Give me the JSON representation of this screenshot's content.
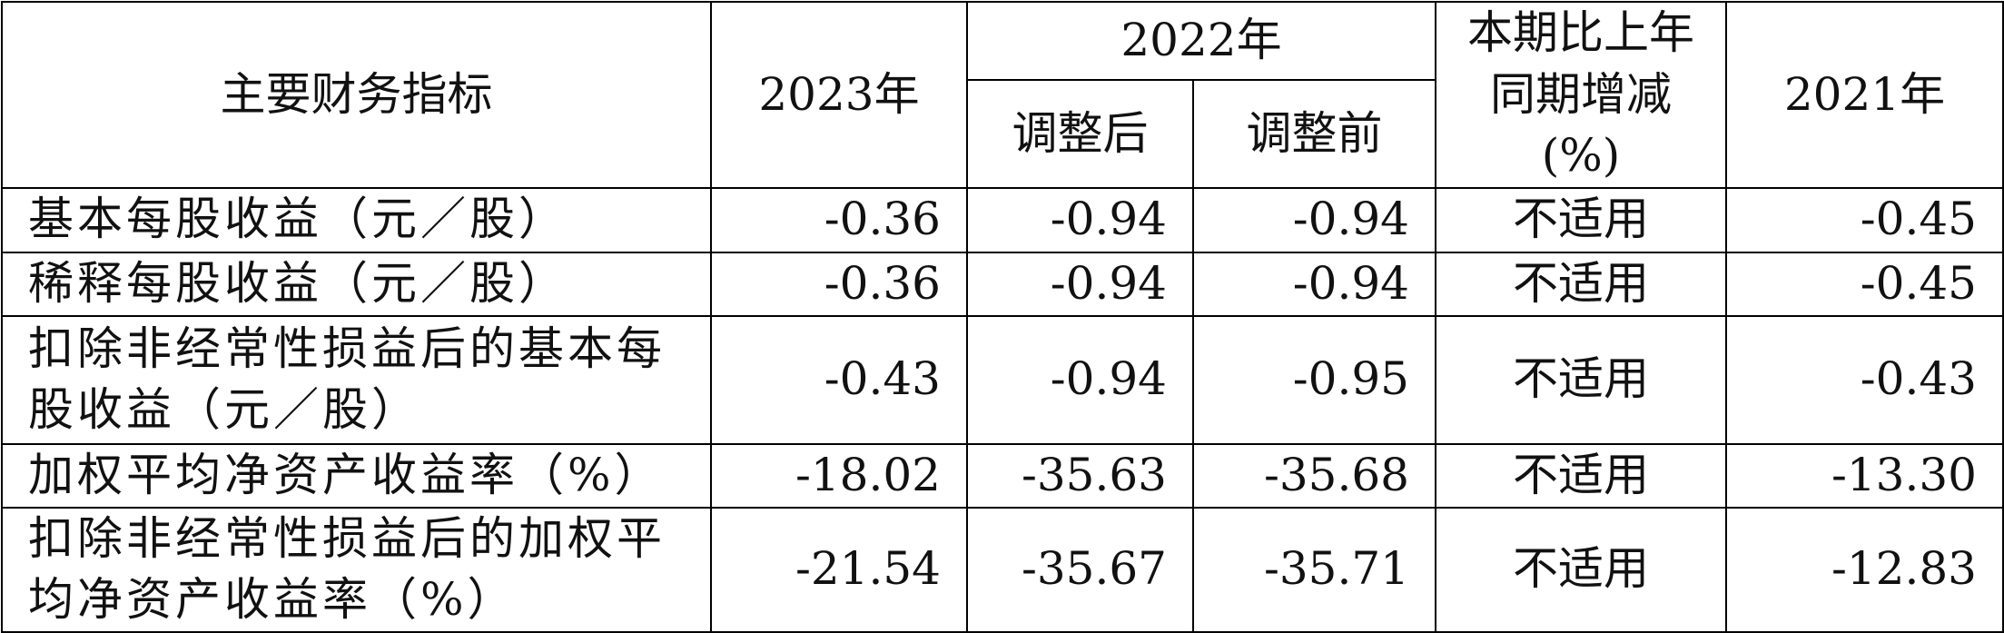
{
  "table": {
    "header": {
      "indicator": "主要财务指标",
      "y2023": "2023年",
      "y2022": "2022年",
      "adjusted": "调整后",
      "before_adjustment": "调整前",
      "change": [
        "本期比上年",
        "同期增减",
        "(%)"
      ],
      "y2021": "2021年"
    },
    "rows": [
      [
        "基本每股收益（元／股）",
        "-0.36",
        "-0.94",
        "-0.94",
        "不适用",
        "-0.45"
      ],
      [
        "稀释每股收益（元／股）",
        "-0.36",
        "-0.94",
        "-0.94",
        "不适用",
        "-0.45"
      ],
      [
        "扣除非经常性损益后的基本每股收益（元／股）",
        "-0.43",
        "-0.94",
        "-0.95",
        "不适用",
        "-0.43"
      ],
      [
        "加权平均净资产收益率（%）",
        "-18.02",
        "-35.63",
        "-35.68",
        "不适用",
        "-13.30"
      ],
      [
        "扣除非经常性损益后的加权平均净资产收益率（%）",
        "-21.54",
        "-35.67",
        "-35.71",
        "不适用",
        "-12.83"
      ]
    ]
  }
}
